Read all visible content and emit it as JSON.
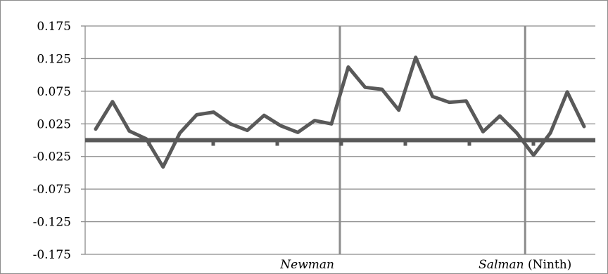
{
  "chart_data": {
    "type": "line",
    "title": "",
    "xlabel": "",
    "ylabel": "",
    "ylim": [
      -0.175,
      0.175
    ],
    "yticks": [
      "0.175",
      "0.125",
      "0.075",
      "0.025",
      "-0.025",
      "-0.075",
      "-0.125",
      "-0.175"
    ],
    "ytick_values": [
      0.175,
      0.125,
      0.075,
      0.025,
      -0.025,
      -0.075,
      -0.125,
      -0.175
    ],
    "grid": true,
    "legend": "none",
    "series": [
      {
        "values": [
          0.017,
          0.059,
          0.014,
          0.002,
          -0.041,
          0.011,
          0.039,
          0.043,
          0.025,
          0.015,
          0.038,
          0.022,
          0.012,
          0.03,
          0.025,
          0.112,
          0.081,
          0.078,
          0.046,
          0.127,
          0.067,
          0.058,
          0.06,
          0.013,
          0.037,
          0.011,
          -0.023,
          0.011,
          0.074,
          0.021
        ]
      }
    ],
    "vertical_markers": [
      {
        "after_index": 14,
        "label_italic": "Newman",
        "label_plain": ""
      },
      {
        "after_index": 25,
        "label_italic": "Salman",
        "label_plain": " (Ninth)"
      }
    ],
    "colors": {
      "line": "#595959",
      "gridline": "#8c8c8c",
      "zero_line": "#595959",
      "marker_line": "#8c8c8c"
    }
  }
}
